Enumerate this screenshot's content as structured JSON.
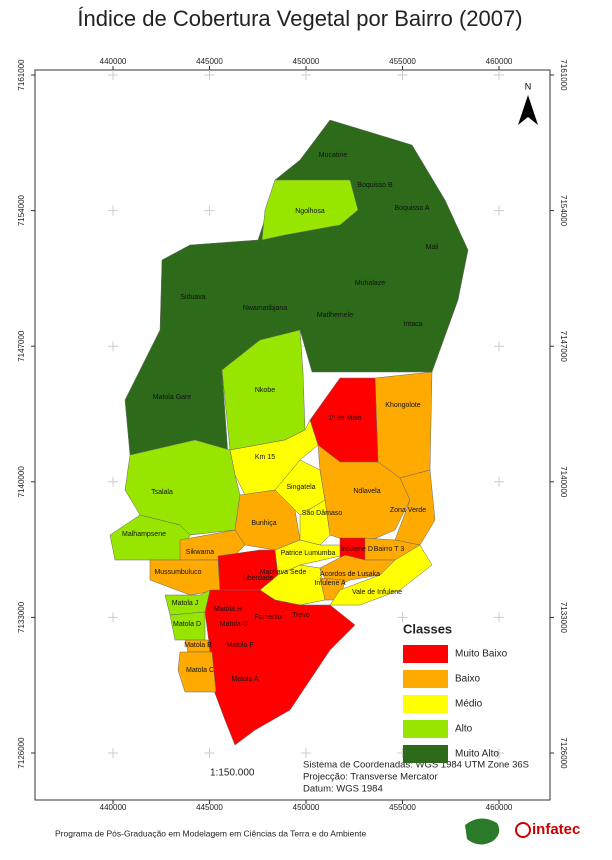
{
  "header": {
    "title": "Índice de Cobertura Vegetal por Bairro (2007)"
  },
  "map": {
    "xticks": [
      440000,
      445000,
      450000,
      455000,
      460000
    ],
    "yticks": [
      7161000,
      7154000,
      7147000,
      7140000,
      7133000,
      7126000
    ],
    "north_label": "N",
    "neighborhoods": [
      {
        "name": "Matola Gare",
        "class": "Muito Alto"
      },
      {
        "name": "Mucatine",
        "class": "Muito Alto"
      },
      {
        "name": "Boquisso B",
        "class": "Muito Alto"
      },
      {
        "name": "Boquisso A",
        "class": "Muito Alto"
      },
      {
        "name": "Mali",
        "class": "Muito Alto"
      },
      {
        "name": "Muhalaze",
        "class": "Muito Alto"
      },
      {
        "name": "Intaca",
        "class": "Muito Alto"
      },
      {
        "name": "Matlhemele",
        "class": "Muito Alto"
      },
      {
        "name": "Nwamatibjana",
        "class": "Muito Alto"
      },
      {
        "name": "Siduava",
        "class": "Muito Alto"
      },
      {
        "name": "Ngolhosa",
        "class": "Alto"
      },
      {
        "name": "Nkobe",
        "class": "Alto"
      },
      {
        "name": "Khongolote",
        "class": "Baixo"
      },
      {
        "name": "1º de Maio",
        "class": "Muito Baixo"
      },
      {
        "name": "Km 15",
        "class": "Médio"
      },
      {
        "name": "Tsalala",
        "class": "Alto"
      },
      {
        "name": "Malhampsene",
        "class": "Alto"
      },
      {
        "name": "Bunhiça",
        "class": "Baixo"
      },
      {
        "name": "Singatela",
        "class": "Médio"
      },
      {
        "name": "Ndlavela",
        "class": "Baixo"
      },
      {
        "name": "Zona Verde",
        "class": "Baixo"
      },
      {
        "name": "São Dâmaso",
        "class": "Médio"
      },
      {
        "name": "Sikwama",
        "class": "Baixo"
      },
      {
        "name": "Mussumbuluco",
        "class": "Baixo"
      },
      {
        "name": "Liberdade",
        "class": "Muito Baixo"
      },
      {
        "name": "Patrice Lumumba",
        "class": "Médio"
      },
      {
        "name": "Infulene D",
        "class": "Muito Baixo"
      },
      {
        "name": "Bairro T 3",
        "class": "Baixo"
      },
      {
        "name": "Machava Sede",
        "class": "Médio"
      },
      {
        "name": "Acordos de Lusaka",
        "class": "Baixo"
      },
      {
        "name": "Infulene A",
        "class": "Baixo"
      },
      {
        "name": "Vale de Infulene",
        "class": "Médio"
      },
      {
        "name": "Matola A",
        "class": "Muito Baixo"
      },
      {
        "name": "Matola J",
        "class": "Alto"
      },
      {
        "name": "Matola D",
        "class": "Alto"
      },
      {
        "name": "Matola H",
        "class": "Muito Baixo"
      },
      {
        "name": "Matola G",
        "class": "Muito Baixo"
      },
      {
        "name": "Fomento",
        "class": "Muito Baixo"
      },
      {
        "name": "Trevo",
        "class": "Muito Baixo"
      },
      {
        "name": "Matola B",
        "class": "Baixo"
      },
      {
        "name": "Matola F",
        "class": "Muito Baixo"
      },
      {
        "name": "Matola C",
        "class": "Baixo"
      }
    ],
    "legend": {
      "title": "Classes",
      "classes": [
        {
          "name": "Muito Baixo",
          "color": "#ff0000"
        },
        {
          "name": "Baixo",
          "color": "#ffaa00"
        },
        {
          "name": "Médio",
          "color": "#ffff00"
        },
        {
          "name": "Alto",
          "color": "#98e600"
        },
        {
          "name": "Muito Alto",
          "color": "#2d6b1a"
        }
      ]
    },
    "scale": "1:150.000",
    "info": [
      "Sistema de Coordenadas: WGS 1984 UTM Zone 36S",
      "Projecção: Transverse Mercator",
      "Datum: WGS 1984"
    ]
  },
  "footer": {
    "program": "Programa de Pós-Graduação em Modelagem em Ciências da Terra e do Ambiente",
    "logo": "infatec"
  }
}
